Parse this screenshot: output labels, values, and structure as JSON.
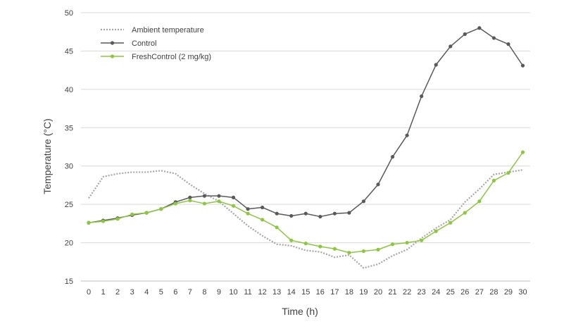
{
  "chart_data": {
    "type": "line",
    "title": "",
    "xlabel": "Time (h)",
    "ylabel": "Temperature (°C)",
    "ylim": [
      15,
      50
    ],
    "yticks": [
      15,
      20,
      25,
      30,
      35,
      40,
      45,
      50
    ],
    "x": [
      0,
      1,
      2,
      3,
      4,
      5,
      6,
      7,
      8,
      9,
      10,
      11,
      12,
      13,
      14,
      15,
      16,
      17,
      18,
      19,
      20,
      21,
      22,
      23,
      24,
      25,
      26,
      27,
      28,
      29,
      30
    ],
    "grid": "horizontal",
    "legend_position": "top-left",
    "series": [
      {
        "name": "Ambient temperature",
        "style": "dotted",
        "color": "#a6a6a6",
        "values": [
          25.8,
          28.6,
          29.0,
          29.2,
          29.2,
          29.4,
          29.0,
          27.6,
          26.4,
          25.4,
          23.8,
          22.2,
          20.9,
          19.8,
          19.6,
          19.0,
          18.8,
          18.1,
          18.4,
          16.7,
          17.2,
          18.3,
          19.1,
          20.6,
          21.9,
          23.0,
          25.3,
          27.0,
          28.9,
          29.2,
          29.5
        ]
      },
      {
        "name": "Control",
        "style": "solid",
        "color": "#595959",
        "values": [
          22.6,
          22.9,
          23.2,
          23.6,
          23.9,
          24.4,
          25.3,
          25.9,
          26.1,
          26.1,
          25.9,
          24.4,
          24.6,
          23.8,
          23.5,
          23.8,
          23.4,
          23.8,
          23.9,
          25.4,
          27.6,
          31.2,
          34.0,
          39.1,
          43.2,
          45.6,
          47.2,
          48.0,
          46.7,
          45.9,
          43.1
        ]
      },
      {
        "name": "FreshControl (2 mg/kg)",
        "style": "solid",
        "color": "#8dc63f",
        "values": [
          22.6,
          22.8,
          23.1,
          23.7,
          23.9,
          24.4,
          25.1,
          25.5,
          25.1,
          25.4,
          24.8,
          23.8,
          23.0,
          22.0,
          20.3,
          19.9,
          19.5,
          19.2,
          18.7,
          18.9,
          19.1,
          19.8,
          20.0,
          20.3,
          21.5,
          22.6,
          23.9,
          25.4,
          28.1,
          29.1,
          31.8
        ]
      }
    ]
  }
}
